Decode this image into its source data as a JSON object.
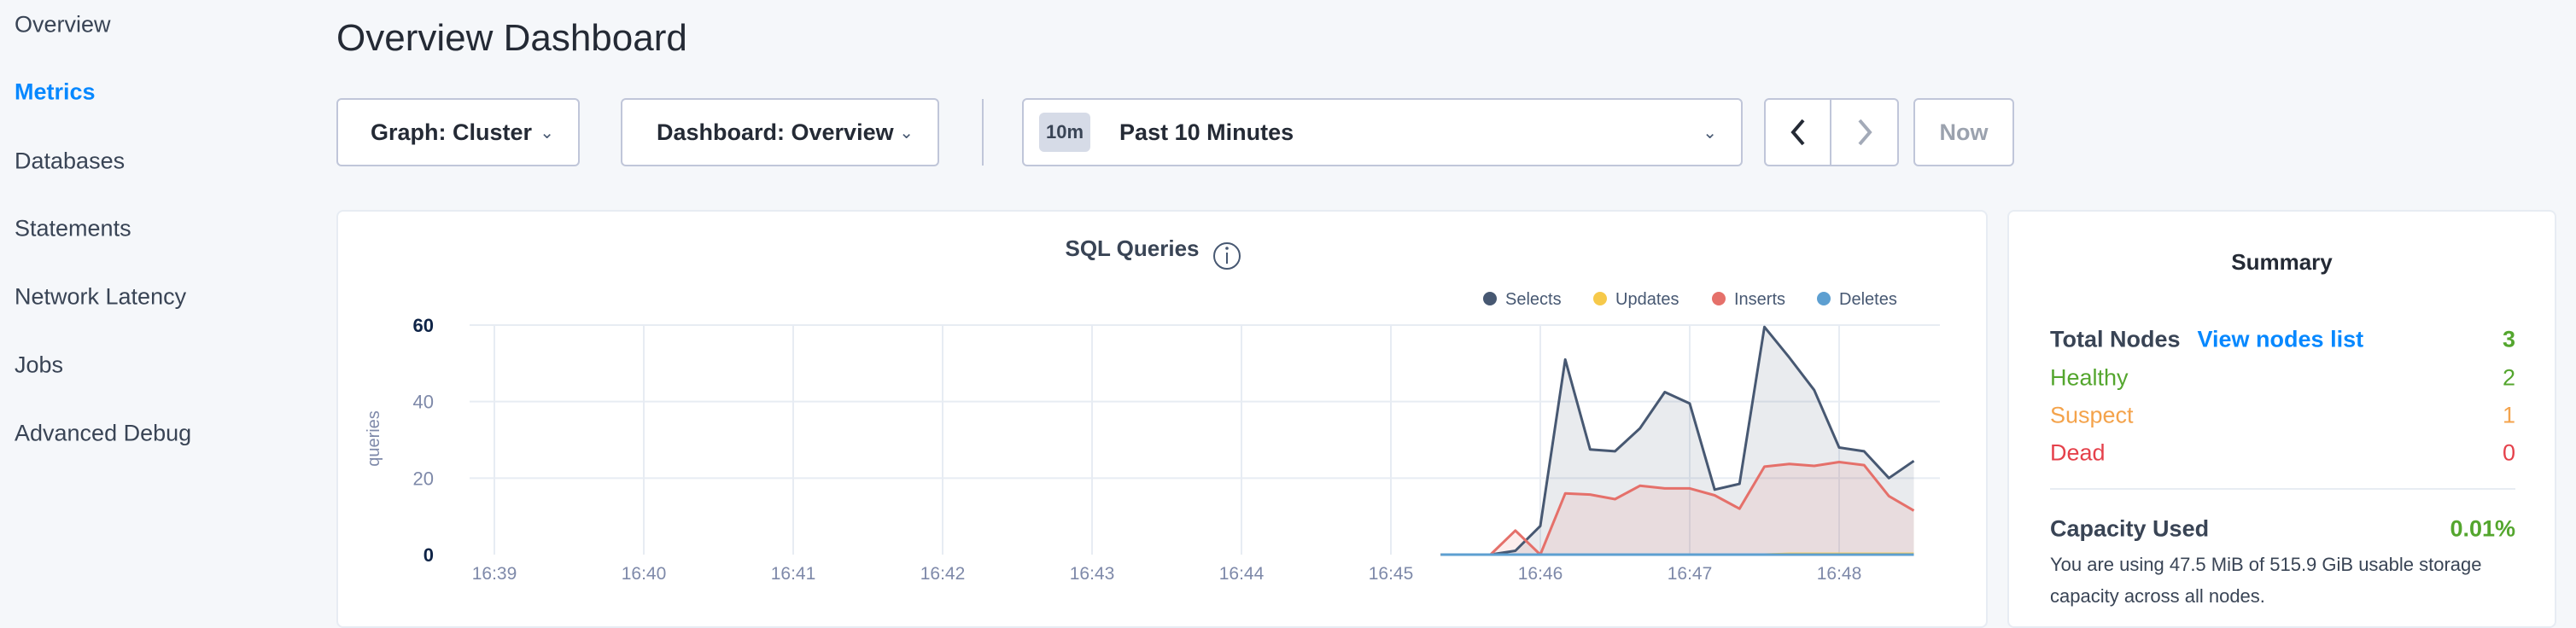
{
  "sidebar": {
    "items": [
      {
        "label": "Overview",
        "active": false
      },
      {
        "label": "Metrics",
        "active": true
      },
      {
        "label": "Databases",
        "active": false
      },
      {
        "label": "Statements",
        "active": false
      },
      {
        "label": "Network Latency",
        "active": false
      },
      {
        "label": "Jobs",
        "active": false
      },
      {
        "label": "Advanced Debug",
        "active": false
      }
    ]
  },
  "header": {
    "title": "Overview Dashboard"
  },
  "toolbar": {
    "graph_select": "Graph: Cluster",
    "dashboard_select": "Dashboard: Overview",
    "time_badge": "10m",
    "time_range": "Past 10 Minutes",
    "now_label": "Now",
    "icons": {
      "prev": "chevron-left-icon",
      "next": "chevron-right-icon",
      "dropdown": "chevron-down-icon"
    }
  },
  "chart_data": {
    "type": "area",
    "title": "SQL Queries",
    "ylabel": "queries",
    "xlabel": "",
    "ylim": [
      0,
      60
    ],
    "yticks": [
      "0",
      "20",
      "40",
      "60"
    ],
    "xticks": [
      "16:39",
      "16:40",
      "16:41",
      "16:42",
      "16:43",
      "16:44",
      "16:45",
      "16:46",
      "16:47",
      "16:48"
    ],
    "grid": true,
    "legend": "top-right",
    "x": [
      "16:45:20",
      "16:45:30",
      "16:45:40",
      "16:45:50",
      "16:46:00",
      "16:46:10",
      "16:46:20",
      "16:46:30",
      "16:46:40",
      "16:46:50",
      "16:47:00",
      "16:47:10",
      "16:47:20",
      "16:47:30",
      "16:47:40",
      "16:47:50",
      "16:48:00",
      "16:48:10",
      "16:48:20",
      "16:48:30"
    ],
    "series": [
      {
        "name": "Selects",
        "color": "#475872",
        "values": [
          0,
          0,
          0,
          1,
          7.5,
          51,
          27.5,
          27,
          33,
          42.5,
          39.5,
          17,
          18.5,
          59.5,
          51.5,
          43,
          28,
          27,
          20,
          24.5
        ]
      },
      {
        "name": "Updates",
        "color": "#f6c94a",
        "values": [
          0,
          0,
          0,
          0,
          0,
          0,
          0,
          0,
          0,
          0,
          0,
          0,
          0,
          0,
          0.2,
          0.2,
          0.2,
          0.2,
          0.2,
          0.2
        ]
      },
      {
        "name": "Inserts",
        "color": "#e5706a",
        "values": [
          0,
          0,
          0,
          6.3,
          0,
          16,
          15.7,
          14.5,
          18,
          17.3,
          17.3,
          15.5,
          12,
          23,
          23.7,
          23.2,
          24.2,
          23.4,
          15.3,
          11.5
        ]
      },
      {
        "name": "Deletes",
        "color": "#5d9fd1",
        "values": [
          0,
          0,
          0,
          0,
          0,
          0,
          0,
          0,
          0,
          0,
          0,
          0,
          0,
          0,
          0,
          0,
          0,
          0,
          0,
          0
        ]
      }
    ]
  },
  "summary": {
    "title": "Summary",
    "total_nodes_label": "Total Nodes",
    "view_nodes_link": "View nodes list",
    "total_nodes": "3",
    "healthy_label": "Healthy",
    "healthy": "2",
    "suspect_label": "Suspect",
    "suspect": "1",
    "dead_label": "Dead",
    "dead": "0",
    "capacity_label": "Capacity Used",
    "capacity_value": "0.01%",
    "capacity_text": "You are using 47.5 MiB of 515.9 GiB usable storage capacity across all nodes.",
    "colors": {
      "healthy": "#54a62e",
      "suspect": "#f4a34b",
      "dead": "#e5414b",
      "link": "#0788ff"
    }
  }
}
